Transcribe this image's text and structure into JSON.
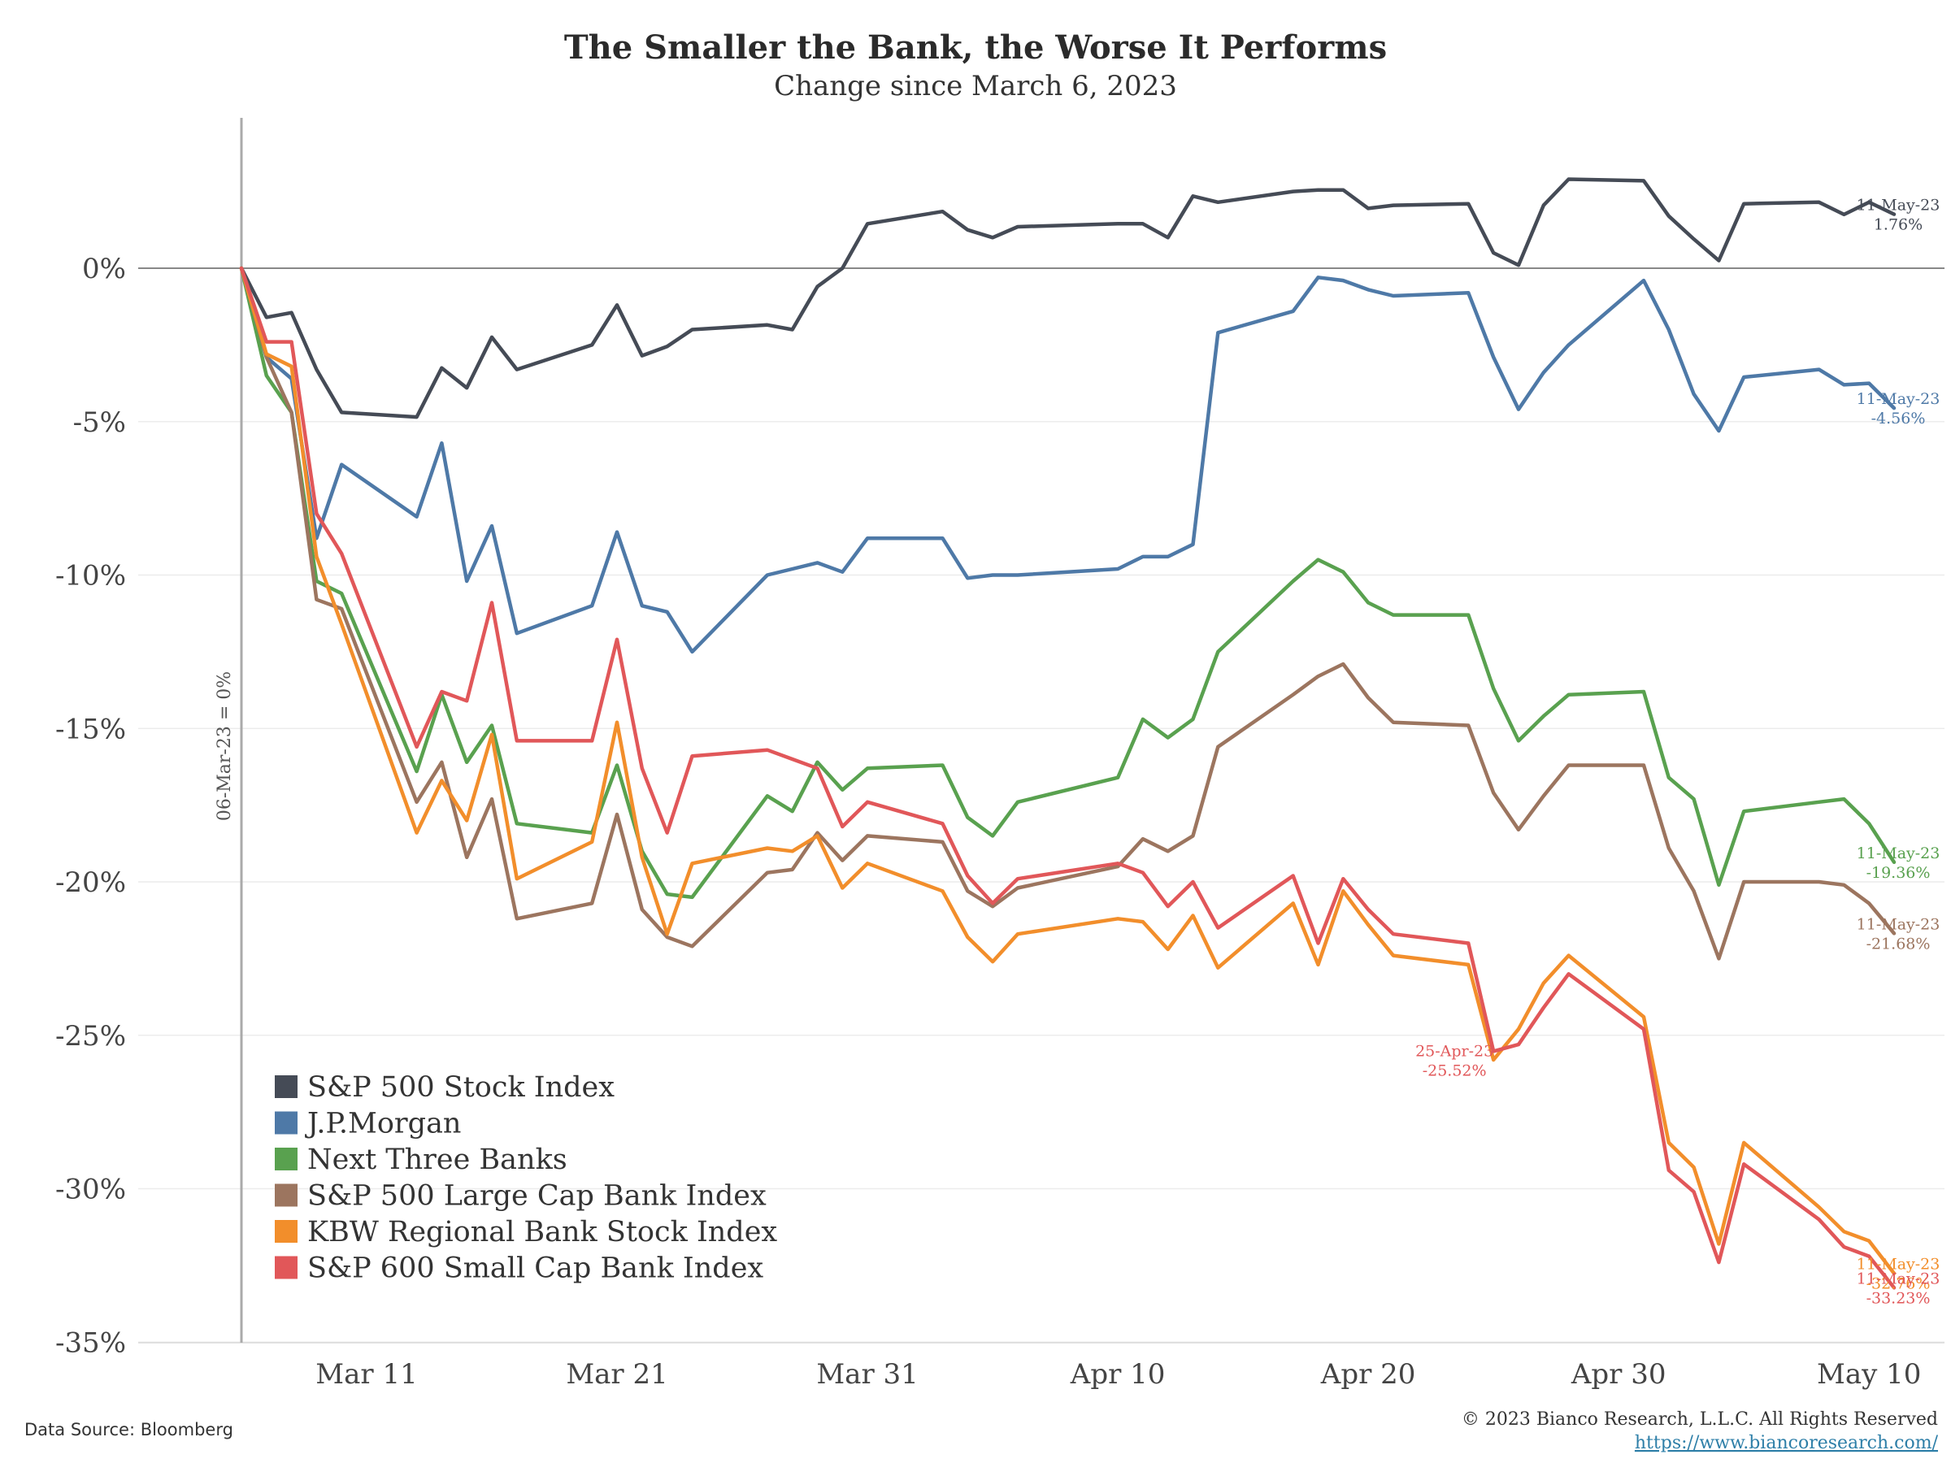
{
  "chart_data": {
    "type": "line",
    "title": "The Smaller the Bank, the Worse It Performs",
    "subtitle": "Change since March 6, 2023",
    "ylim": [
      -35,
      4
    ],
    "xlim": [
      "2023-03-06",
      "2023-05-11"
    ],
    "yticks": [
      {
        "value": 0,
        "label": "0%"
      },
      {
        "value": -5,
        "label": "-5%"
      },
      {
        "value": -10,
        "label": "-10%"
      },
      {
        "value": -15,
        "label": "-15%"
      },
      {
        "value": -20,
        "label": "-20%"
      },
      {
        "value": -25,
        "label": "-25%"
      },
      {
        "value": -30,
        "label": "-30%"
      },
      {
        "value": -35,
        "label": "-35%"
      }
    ],
    "xticks": [
      {
        "date": "2023-03-11",
        "label": "Mar 11"
      },
      {
        "date": "2023-03-21",
        "label": "Mar 21"
      },
      {
        "date": "2023-03-31",
        "label": "Mar 31"
      },
      {
        "date": "2023-04-10",
        "label": "Apr 10"
      },
      {
        "date": "2023-04-20",
        "label": "Apr 20"
      },
      {
        "date": "2023-04-30",
        "label": "Apr 30"
      },
      {
        "date": "2023-05-10",
        "label": "May 10"
      }
    ],
    "grid": true,
    "legend_position": "bottom-left",
    "baseline_label": "06-Mar-23 = 0%",
    "dates": [
      "2023-03-06",
      "2023-03-07",
      "2023-03-08",
      "2023-03-09",
      "2023-03-10",
      "2023-03-13",
      "2023-03-14",
      "2023-03-15",
      "2023-03-16",
      "2023-03-17",
      "2023-03-20",
      "2023-03-21",
      "2023-03-22",
      "2023-03-23",
      "2023-03-24",
      "2023-03-27",
      "2023-03-28",
      "2023-03-29",
      "2023-03-30",
      "2023-03-31",
      "2023-04-03",
      "2023-04-04",
      "2023-04-05",
      "2023-04-06",
      "2023-04-10",
      "2023-04-11",
      "2023-04-12",
      "2023-04-13",
      "2023-04-14",
      "2023-04-17",
      "2023-04-18",
      "2023-04-19",
      "2023-04-20",
      "2023-04-21",
      "2023-04-24",
      "2023-04-25",
      "2023-04-26",
      "2023-04-27",
      "2023-04-28",
      "2023-05-01",
      "2023-05-02",
      "2023-05-03",
      "2023-05-04",
      "2023-05-05",
      "2023-05-08",
      "2023-05-09",
      "2023-05-10",
      "2023-05-11"
    ],
    "series": [
      {
        "name": "S&P 500 Stock Index",
        "color": "#454b56",
        "end_date": "11-May-23",
        "end_value_label": "1.76%",
        "values": [
          0,
          -1.6,
          -1.45,
          -3.3,
          -4.7,
          -4.85,
          -3.25,
          -3.9,
          -2.25,
          -3.3,
          -2.5,
          -1.2,
          -2.85,
          -2.55,
          -2.0,
          -1.85,
          -2.0,
          -0.6,
          0.0,
          1.45,
          1.85,
          1.25,
          1.0,
          1.35,
          1.45,
          1.45,
          1.0,
          2.35,
          2.15,
          2.5,
          2.55,
          2.55,
          1.95,
          2.05,
          2.1,
          0.5,
          0.1,
          2.05,
          2.9,
          2.85,
          1.7,
          0.95,
          0.25,
          2.1,
          2.15,
          1.75,
          2.15,
          1.76
        ]
      },
      {
        "name": "J.P.Morgan",
        "color": "#4e79a7",
        "end_date": "11-May-23",
        "end_value_label": "-4.56%",
        "values": [
          0,
          -2.9,
          -3.6,
          -8.8,
          -6.4,
          -8.1,
          -5.7,
          -10.2,
          -8.4,
          -11.9,
          -11.0,
          -8.6,
          -11.0,
          -11.2,
          -12.5,
          -10.0,
          -9.8,
          -9.6,
          -9.9,
          -8.8,
          -8.8,
          -10.1,
          -10.0,
          -10.0,
          -9.8,
          -9.4,
          -9.4,
          -9.0,
          -2.1,
          -1.4,
          -0.3,
          -0.4,
          -0.7,
          -0.9,
          -0.8,
          -2.9,
          -4.6,
          -3.4,
          -2.5,
          -0.4,
          -2.0,
          -4.1,
          -5.3,
          -3.55,
          -3.3,
          -3.8,
          -3.75,
          -4.56
        ]
      },
      {
        "name": "Next Three Banks",
        "color": "#59a14f",
        "end_date": "11-May-23",
        "end_value_label": "-19.36%",
        "values": [
          0,
          -3.5,
          -4.7,
          -10.2,
          -10.6,
          -16.4,
          -13.9,
          -16.1,
          -14.9,
          -18.1,
          -18.4,
          -16.2,
          -19.0,
          -20.4,
          -20.5,
          -17.2,
          -17.7,
          -16.1,
          -17.0,
          -16.3,
          -16.2,
          -17.9,
          -18.5,
          -17.4,
          -16.6,
          -14.7,
          -15.3,
          -14.7,
          -12.5,
          -10.2,
          -9.5,
          -9.9,
          -10.9,
          -11.3,
          -11.3,
          -13.7,
          -15.4,
          -14.6,
          -13.9,
          -13.8,
          -16.6,
          -17.3,
          -20.1,
          -17.7,
          -17.4,
          -17.3,
          -18.1,
          -19.36
        ]
      },
      {
        "name": "S&P 500 Large Cap Bank Index",
        "color": "#9c755f",
        "end_date": "11-May-23",
        "end_value_label": "-21.68%",
        "values": [
          0,
          -2.9,
          -4.7,
          -10.8,
          -11.1,
          -17.4,
          -16.1,
          -19.2,
          -17.3,
          -21.2,
          -20.7,
          -17.8,
          -20.9,
          -21.8,
          -22.1,
          -19.7,
          -19.6,
          -18.4,
          -19.3,
          -18.5,
          -18.7,
          -20.3,
          -20.8,
          -20.2,
          -19.5,
          -18.6,
          -19.0,
          -18.5,
          -15.6,
          -13.9,
          -13.3,
          -12.9,
          -14.0,
          -14.8,
          -14.9,
          -17.1,
          -18.3,
          -17.2,
          -16.2,
          -16.2,
          -18.9,
          -20.3,
          -22.5,
          -20.0,
          -20.0,
          -20.1,
          -20.7,
          -21.68
        ]
      },
      {
        "name": "KBW Regional Bank Stock Index",
        "color": "#f28e2b",
        "end_date": "11-May-23",
        "end_value_label": "-32.76%",
        "values": [
          0,
          -2.8,
          -3.2,
          -9.4,
          -11.6,
          -18.4,
          -16.7,
          -18.0,
          -15.2,
          -19.9,
          -18.7,
          -14.8,
          -19.2,
          -21.7,
          -19.4,
          -18.9,
          -19.0,
          -18.5,
          -20.2,
          -19.4,
          -20.3,
          -21.8,
          -22.6,
          -21.7,
          -21.2,
          -21.3,
          -22.2,
          -21.1,
          -22.8,
          -20.7,
          -22.7,
          -20.3,
          -21.4,
          -22.4,
          -22.7,
          -25.8,
          -24.8,
          -23.3,
          -22.4,
          -24.4,
          -28.5,
          -29.3,
          -31.8,
          -28.5,
          -30.6,
          -31.4,
          -31.7,
          -32.76
        ]
      },
      {
        "name": "S&P 600 Small Cap Bank Index",
        "color": "#e15759",
        "end_date": "11-May-23",
        "end_value_label": "-33.23%",
        "values": [
          0,
          -2.4,
          -2.4,
          -8.0,
          -9.3,
          -15.6,
          -13.8,
          -14.1,
          -10.9,
          -15.4,
          -15.4,
          -12.1,
          -16.3,
          -18.4,
          -15.9,
          -15.7,
          -16.0,
          -16.3,
          -18.2,
          -17.4,
          -18.1,
          -19.8,
          -20.7,
          -19.9,
          -19.4,
          -19.7,
          -20.8,
          -20.0,
          -21.5,
          -19.8,
          -22.0,
          -19.9,
          -20.9,
          -21.7,
          -22.0,
          -25.52,
          -25.3,
          -24.1,
          -23.0,
          -24.8,
          -29.4,
          -30.1,
          -32.4,
          -29.2,
          -31.0,
          -31.9,
          -32.2,
          -33.23
        ]
      }
    ],
    "annotation": {
      "series_index": 5,
      "date": "2023-04-25",
      "date_label": "25-Apr-23",
      "value_label": "-25.52%"
    }
  },
  "footer": {
    "source": "Data Source: Bloomberg",
    "copyright": "© 2023 Bianco Research, L.L.C. All Rights Reserved",
    "url": "https://www.biancoresearch.com/"
  }
}
